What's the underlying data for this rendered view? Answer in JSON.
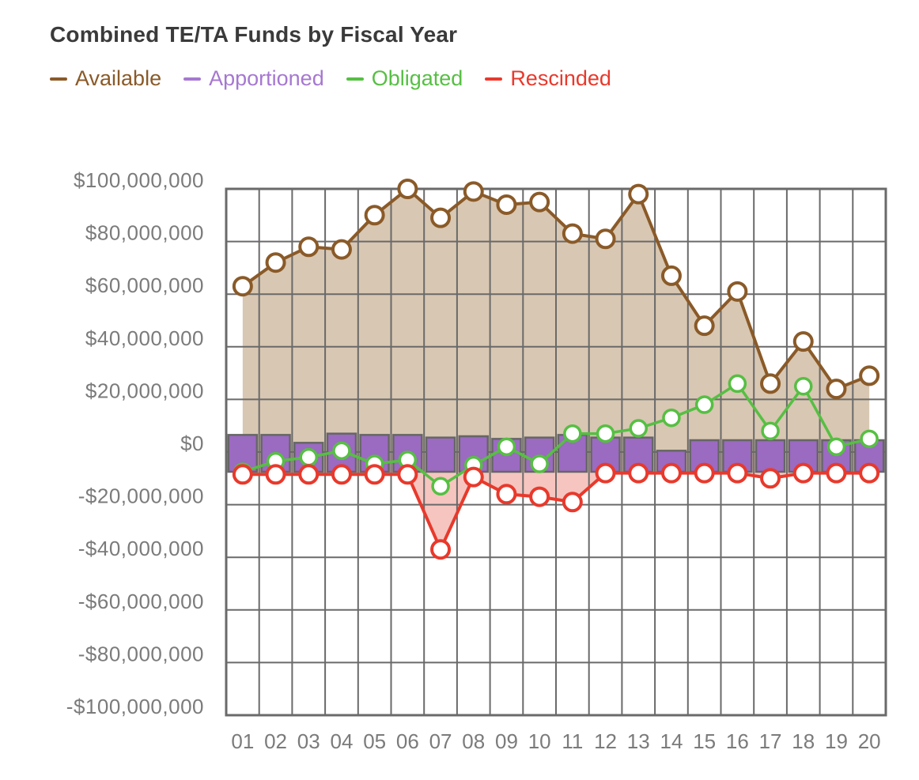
{
  "title": "Combined TE/TA Funds by Fiscal Year",
  "legend": [
    {
      "label": "Available",
      "color": "#8a5a28"
    },
    {
      "label": "Apportioned",
      "color": "#a678d1"
    },
    {
      "label": "Obligated",
      "color": "#56bf43"
    },
    {
      "label": "Rescinded",
      "color": "#e8392c"
    }
  ],
  "chart_data": {
    "type": "combo-area-bar-line",
    "title": "Combined TE/TA Funds by Fiscal Year",
    "unit": "USD millions",
    "categories": [
      "01",
      "02",
      "03",
      "04",
      "05",
      "06",
      "07",
      "08",
      "09",
      "10",
      "11",
      "12",
      "13",
      "14",
      "15",
      "16",
      "17",
      "18",
      "19",
      "20"
    ],
    "series": [
      {
        "name": "Available",
        "type": "area-line",
        "color": "#8a5a28",
        "fill": "#d8c7b2",
        "values_musd": [
          63,
          72,
          78,
          77,
          90,
          100,
          89,
          99,
          94,
          95,
          83,
          81,
          98,
          67,
          48,
          61,
          26,
          42,
          24,
          29
        ]
      },
      {
        "name": "Apportioned",
        "type": "bar",
        "color": "#9b6ac1",
        "border": "#666666",
        "baseline_musd": -7.5,
        "values_musd": [
          6.5,
          6.5,
          3.5,
          7,
          6.5,
          6.5,
          5.5,
          6,
          5,
          5.5,
          6.5,
          5.5,
          5.5,
          0.5,
          4.5,
          4.5,
          4.5,
          4.5,
          4.5,
          4.5
        ]
      },
      {
        "name": "Obligated",
        "type": "line",
        "color": "#56bf43",
        "values_musd": [
          -7.5,
          -3.5,
          -2,
          0.5,
          -4.5,
          -3,
          -13,
          -5,
          2,
          -4.5,
          7,
          7,
          9,
          13,
          18,
          26,
          8,
          25,
          2,
          5
        ]
      },
      {
        "name": "Rescinded",
        "type": "line-area",
        "color": "#e8392c",
        "fill": "#f6c5bf",
        "values_musd": [
          -8.5,
          -8.5,
          -8.5,
          -8.5,
          -8.5,
          -8.5,
          -37,
          -9.5,
          -16,
          -17,
          -19,
          -8,
          -8,
          -8,
          -8,
          -8,
          -10,
          -8,
          -8,
          -8
        ]
      }
    ],
    "yticks": [
      "$100,000,000",
      "$80,000,000",
      "$60,000,000",
      "$40,000,000",
      "$20,000,000",
      "$0",
      "-$20,000,000",
      "-$40,000,000",
      "-$60,000,000",
      "-$80,000,000",
      "-$100,000,000"
    ],
    "ytick_values_musd": [
      100,
      80,
      60,
      40,
      20,
      0,
      -20,
      -40,
      -60,
      -80,
      -100
    ],
    "ylim_musd": [
      -100,
      100
    ],
    "xlabel": "",
    "ylabel": "",
    "grid": true,
    "grid_color": "#6a6a6a",
    "axis_label_color": "#7b7b7b",
    "legend_position": "top-left"
  }
}
